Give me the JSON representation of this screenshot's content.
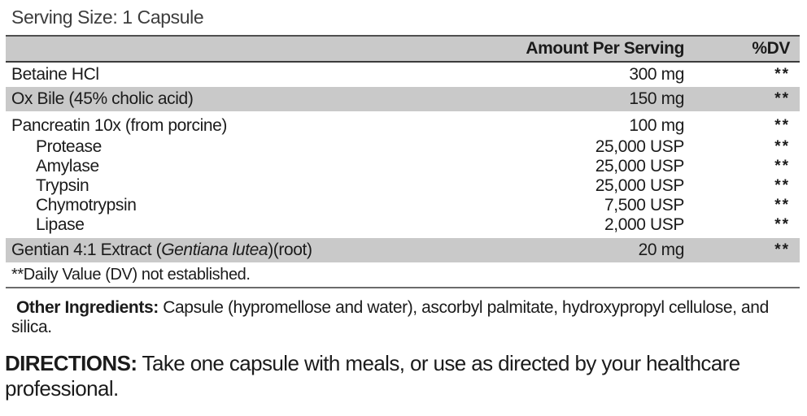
{
  "panel": {
    "serving_size": "Serving Size: 1 Capsule",
    "header": {
      "amount": "Amount Per Serving",
      "dv": "%DV"
    },
    "rows": [
      {
        "name": "Betaine HCl",
        "amount": "300 mg",
        "dv": "**",
        "shade": false
      },
      {
        "name": "Ox Bile (45% cholic acid)",
        "amount": "150 mg",
        "dv": "**",
        "shade": true
      },
      {
        "name": "Pancreatin 10x (from porcine)",
        "amount": "100 mg",
        "dv": "**",
        "tight": true,
        "group_head": true
      },
      {
        "name": "Protease",
        "amount": "25,000 USP",
        "dv": "**",
        "tight": true,
        "indent": true
      },
      {
        "name": "Amylase",
        "amount": "25,000 USP",
        "dv": "**",
        "tight": true,
        "indent": true
      },
      {
        "name": "Trypsin",
        "amount": "25,000 USP",
        "dv": "**",
        "tight": true,
        "indent": true
      },
      {
        "name": "Chymotrypsin",
        "amount": "7,500 USP",
        "dv": "**",
        "tight": true,
        "indent": true
      },
      {
        "name": "Lipase",
        "amount": "2,000 USP",
        "dv": "**",
        "tight": true,
        "indent": true,
        "group_end": true
      },
      {
        "name_parts": [
          {
            "text": "Gentian 4:1 Extract ("
          },
          {
            "text": "Gentiana lutea",
            "italic": true
          },
          {
            "text": ")(root)"
          }
        ],
        "amount": "20 mg",
        "dv": "**",
        "shade": true
      }
    ],
    "footnote": "**Daily Value (DV) not established.",
    "other_ingredients": {
      "label": "Other Ingredients:",
      "text": " Capsule (hypromellose and water), ascorbyl palmitate, hydroxypropyl cellulose, and silica."
    },
    "directions": {
      "label": "DIRECTIONS:",
      "text": " Take one capsule with meals, or use as directed by your healthcare professional."
    },
    "colors": {
      "row_shade": "#c9c9c9",
      "text": "#1b1b1b",
      "border": "#4f4f4f"
    }
  }
}
